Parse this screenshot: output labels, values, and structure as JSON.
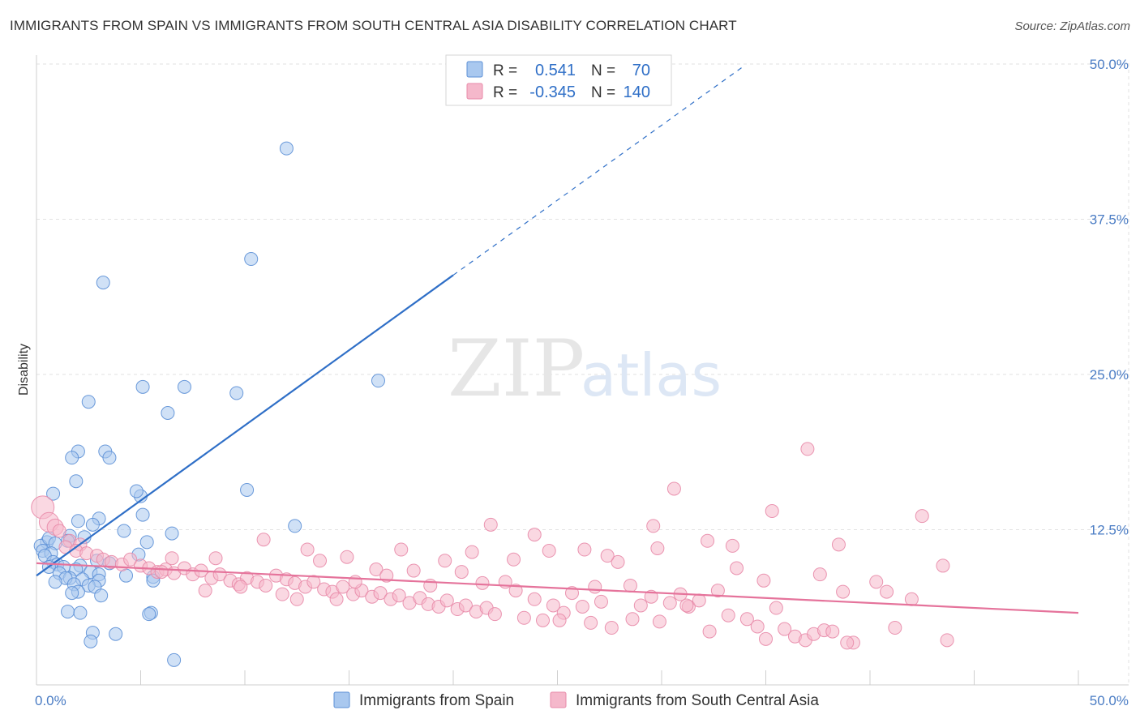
{
  "title": "IMMIGRANTS FROM SPAIN VS IMMIGRANTS FROM SOUTH CENTRAL ASIA DISABILITY CORRELATION CHART",
  "source": "Source: ZipAtlas.com",
  "watermark": {
    "zip": "ZIP",
    "atlas": "atlas"
  },
  "stats": {
    "label_r": "R =",
    "label_n": "N =",
    "rows": [
      {
        "r": "0.541",
        "n": "70",
        "color": "#a9c8ef"
      },
      {
        "r": "-0.345",
        "n": "140",
        "color": "#f5b8cb"
      }
    ]
  },
  "colors": {
    "blue_fill": "#a9c8ef",
    "blue_stroke": "#5b8fd6",
    "blue_line": "#2f6fc7",
    "pink_fill": "#f5b8cb",
    "pink_stroke": "#e88aa8",
    "pink_line": "#e5739b",
    "grid": "#e2e2e2",
    "tick_label": "#4a7cc4"
  },
  "chart_data": {
    "type": "scatter",
    "title": "IMMIGRANTS FROM SPAIN VS IMMIGRANTS FROM SOUTH CENTRAL ASIA DISABILITY CORRELATION CHART",
    "xlabel": "",
    "ylabel": "Disability",
    "xlim": [
      0,
      50
    ],
    "ylim": [
      0,
      50
    ],
    "x_tick_labels": [
      {
        "value": 0,
        "label": "0.0%"
      },
      {
        "value": 50,
        "label": "50.0%"
      }
    ],
    "y_tick_labels": [
      {
        "value": 12.5,
        "label": "12.5%"
      },
      {
        "value": 25,
        "label": "25.0%"
      },
      {
        "value": 37.5,
        "label": "37.5%"
      },
      {
        "value": 50,
        "label": "50.0%"
      }
    ],
    "grid": true,
    "legend_position": "bottom-center",
    "series": [
      {
        "name": "Immigrants from Spain",
        "color": "#a9c8ef",
        "trend": {
          "x": [
            0,
            20
          ],
          "y": [
            8.8,
            33.0
          ],
          "extended_to": [
            34,
            49.9
          ]
        },
        "points": [
          [
            12,
            43.2
          ],
          [
            10.3,
            34.3
          ],
          [
            3.2,
            32.4
          ],
          [
            16.4,
            24.5
          ],
          [
            5.1,
            24.0
          ],
          [
            7.1,
            24.0
          ],
          [
            9.6,
            23.5
          ],
          [
            2.5,
            22.8
          ],
          [
            6.3,
            21.9
          ],
          [
            2.0,
            18.8
          ],
          [
            3.3,
            18.8
          ],
          [
            1.7,
            18.3
          ],
          [
            3.5,
            18.3
          ],
          [
            1.9,
            16.4
          ],
          [
            5.0,
            15.2
          ],
          [
            4.8,
            15.6
          ],
          [
            10.1,
            15.7
          ],
          [
            0.8,
            15.4
          ],
          [
            5.1,
            13.7
          ],
          [
            2.0,
            13.2
          ],
          [
            3.0,
            13.4
          ],
          [
            12.4,
            12.8
          ],
          [
            2.7,
            12.9
          ],
          [
            4.2,
            12.4
          ],
          [
            6.5,
            12.2
          ],
          [
            1.6,
            12.0
          ],
          [
            1.5,
            11.6
          ],
          [
            0.5,
            11.5
          ],
          [
            0.2,
            11.2
          ],
          [
            2.3,
            11.9
          ],
          [
            0.6,
            11.8
          ],
          [
            0.9,
            11.4
          ],
          [
            5.3,
            11.5
          ],
          [
            0.3,
            10.8
          ],
          [
            4.9,
            10.5
          ],
          [
            0.7,
            10.6
          ],
          [
            0.4,
            10.4
          ],
          [
            2.9,
            10.0
          ],
          [
            0.8,
            9.9
          ],
          [
            3.5,
            9.8
          ],
          [
            1.0,
            9.7
          ],
          [
            2.1,
            9.6
          ],
          [
            0.6,
            9.5
          ],
          [
            1.3,
            9.5
          ],
          [
            1.9,
            9.3
          ],
          [
            2.6,
            9.1
          ],
          [
            1.1,
            9.0
          ],
          [
            3.0,
            8.9
          ],
          [
            4.3,
            8.8
          ],
          [
            5.6,
            8.7
          ],
          [
            1.6,
            8.6
          ],
          [
            1.4,
            8.6
          ],
          [
            2.2,
            8.5
          ],
          [
            0.9,
            8.3
          ],
          [
            3.0,
            8.4
          ],
          [
            5.6,
            8.4
          ],
          [
            1.8,
            8.1
          ],
          [
            2.5,
            8.0
          ],
          [
            2.8,
            7.9
          ],
          [
            2.0,
            7.5
          ],
          [
            3.1,
            7.2
          ],
          [
            1.5,
            5.9
          ],
          [
            2.1,
            5.8
          ],
          [
            5.5,
            5.8
          ],
          [
            5.4,
            5.7
          ],
          [
            2.7,
            4.2
          ],
          [
            3.8,
            4.1
          ],
          [
            2.6,
            3.5
          ],
          [
            6.6,
            2.0
          ],
          [
            1.7,
            7.4
          ]
        ]
      },
      {
        "name": "Immigrants from South Central Asia",
        "color": "#f5b8cb",
        "trend": {
          "x": [
            0,
            50
          ],
          "y": [
            9.8,
            5.8
          ]
        },
        "points": [
          [
            0.3,
            14.3
          ],
          [
            0.6,
            13.1
          ],
          [
            0.9,
            12.7
          ],
          [
            1.1,
            12.4
          ],
          [
            1.6,
            11.6
          ],
          [
            2.1,
            11.3
          ],
          [
            1.4,
            11.1
          ],
          [
            1.9,
            10.8
          ],
          [
            2.4,
            10.6
          ],
          [
            2.9,
            10.4
          ],
          [
            3.2,
            10.1
          ],
          [
            3.6,
            9.9
          ],
          [
            4.1,
            9.7
          ],
          [
            4.5,
            10.1
          ],
          [
            5.0,
            9.6
          ],
          [
            5.4,
            9.4
          ],
          [
            5.8,
            9.1
          ],
          [
            6.2,
            9.3
          ],
          [
            6.6,
            9.0
          ],
          [
            7.1,
            9.4
          ],
          [
            7.5,
            8.9
          ],
          [
            7.9,
            9.2
          ],
          [
            8.4,
            8.6
          ],
          [
            8.8,
            8.9
          ],
          [
            9.3,
            8.4
          ],
          [
            9.7,
            8.1
          ],
          [
            10.1,
            8.6
          ],
          [
            10.6,
            8.3
          ],
          [
            11.0,
            8.0
          ],
          [
            11.5,
            8.8
          ],
          [
            12.0,
            8.5
          ],
          [
            12.4,
            8.2
          ],
          [
            12.9,
            7.9
          ],
          [
            13.3,
            8.3
          ],
          [
            13.8,
            7.7
          ],
          [
            14.2,
            7.5
          ],
          [
            14.7,
            7.9
          ],
          [
            15.2,
            7.3
          ],
          [
            15.6,
            7.6
          ],
          [
            16.1,
            7.1
          ],
          [
            16.5,
            7.4
          ],
          [
            17.0,
            6.9
          ],
          [
            17.4,
            7.2
          ],
          [
            17.9,
            6.6
          ],
          [
            18.4,
            7.0
          ],
          [
            18.8,
            6.5
          ],
          [
            19.3,
            6.3
          ],
          [
            19.7,
            6.8
          ],
          [
            20.2,
            6.1
          ],
          [
            20.6,
            6.4
          ],
          [
            21.1,
            5.9
          ],
          [
            21.6,
            6.2
          ],
          [
            22.0,
            5.7
          ],
          [
            22.5,
            8.3
          ],
          [
            23.0,
            7.6
          ],
          [
            23.4,
            5.4
          ],
          [
            23.9,
            6.9
          ],
          [
            24.3,
            5.2
          ],
          [
            24.8,
            6.4
          ],
          [
            25.3,
            5.8
          ],
          [
            25.7,
            7.4
          ],
          [
            26.2,
            6.3
          ],
          [
            26.6,
            5.0
          ],
          [
            27.1,
            6.7
          ],
          [
            27.6,
            4.6
          ],
          [
            27.9,
            9.9
          ],
          [
            28.5,
            8.0
          ],
          [
            29.0,
            6.4
          ],
          [
            29.5,
            7.1
          ],
          [
            29.9,
            5.1
          ],
          [
            30.4,
            6.6
          ],
          [
            30.9,
            7.3
          ],
          [
            31.3,
            6.3
          ],
          [
            31.8,
            6.8
          ],
          [
            32.3,
            4.3
          ],
          [
            32.7,
            7.6
          ],
          [
            33.2,
            5.6
          ],
          [
            33.6,
            9.4
          ],
          [
            34.1,
            5.3
          ],
          [
            34.6,
            4.7
          ],
          [
            35.0,
            3.7
          ],
          [
            35.5,
            6.2
          ],
          [
            35.9,
            4.5
          ],
          [
            36.4,
            3.9
          ],
          [
            36.9,
            3.6
          ],
          [
            37.3,
            4.1
          ],
          [
            37.8,
            4.4
          ],
          [
            38.2,
            4.3
          ],
          [
            38.7,
            7.5
          ],
          [
            39.2,
            3.4
          ],
          [
            13.0,
            10.9
          ],
          [
            13.6,
            10.0
          ],
          [
            14.9,
            10.3
          ],
          [
            15.3,
            8.3
          ],
          [
            16.3,
            9.3
          ],
          [
            17.5,
            10.9
          ],
          [
            18.9,
            8.0
          ],
          [
            19.6,
            10.0
          ],
          [
            20.9,
            10.7
          ],
          [
            21.4,
            8.2
          ],
          [
            22.9,
            10.1
          ],
          [
            23.9,
            12.1
          ],
          [
            25.1,
            5.2
          ],
          [
            26.3,
            10.9
          ],
          [
            27.4,
            10.4
          ],
          [
            28.6,
            5.3
          ],
          [
            29.6,
            12.8
          ],
          [
            29.8,
            11.0
          ],
          [
            30.6,
            15.8
          ],
          [
            31.2,
            6.4
          ],
          [
            32.2,
            11.6
          ],
          [
            33.4,
            11.2
          ],
          [
            34.9,
            8.4
          ],
          [
            35.3,
            14.0
          ],
          [
            37.0,
            19.0
          ],
          [
            37.6,
            8.9
          ],
          [
            38.5,
            11.3
          ],
          [
            38.9,
            3.4
          ],
          [
            40.8,
            7.5
          ],
          [
            40.3,
            8.3
          ],
          [
            41.2,
            4.6
          ],
          [
            42.0,
            6.9
          ],
          [
            43.5,
            9.6
          ],
          [
            43.7,
            3.6
          ],
          [
            42.5,
            13.6
          ],
          [
            12.5,
            6.9
          ],
          [
            6.5,
            10.2
          ],
          [
            6.0,
            9.1
          ],
          [
            8.1,
            7.6
          ],
          [
            9.8,
            7.9
          ],
          [
            11.8,
            7.3
          ],
          [
            14.4,
            6.9
          ],
          [
            16.8,
            8.8
          ],
          [
            18.1,
            9.2
          ],
          [
            20.4,
            9.1
          ],
          [
            21.8,
            12.9
          ],
          [
            24.6,
            10.8
          ],
          [
            26.8,
            7.9
          ],
          [
            8.6,
            10.2
          ],
          [
            10.9,
            11.7
          ]
        ]
      }
    ]
  },
  "legend": {
    "items": [
      {
        "label": "Immigrants from Spain",
        "color": "#a9c8ef"
      },
      {
        "label": "Immigrants from South Central Asia",
        "color": "#f5b8cb"
      }
    ]
  }
}
